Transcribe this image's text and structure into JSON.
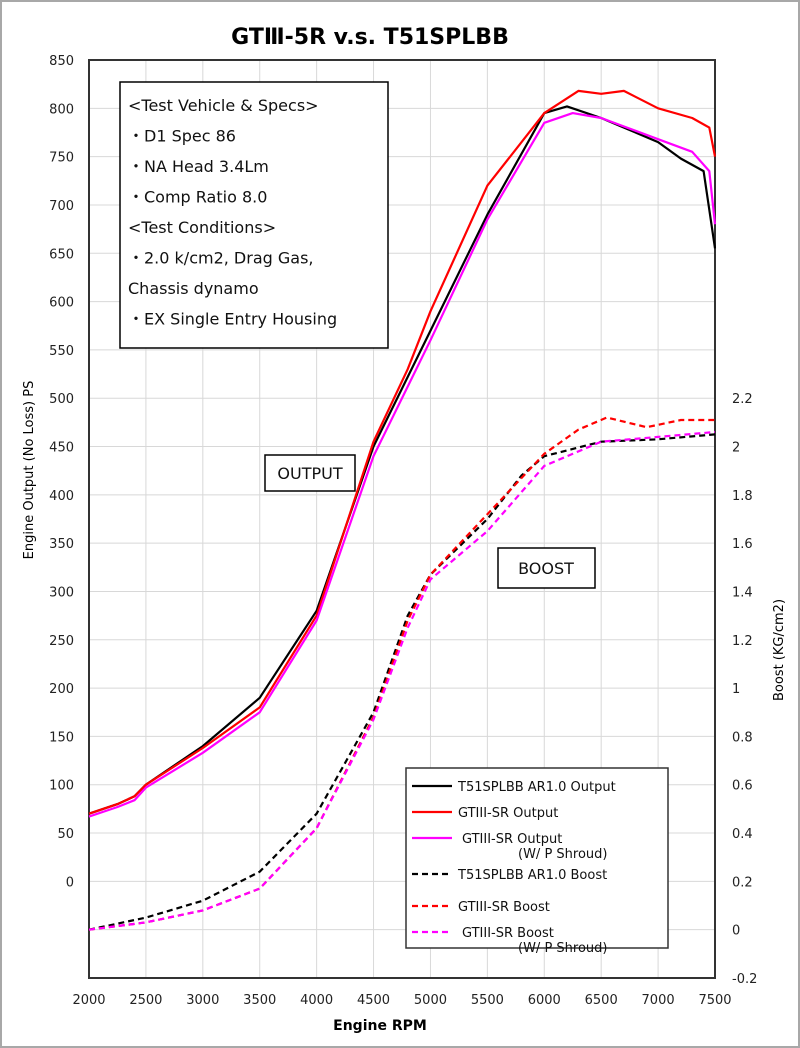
{
  "chart_data": {
    "type": "line",
    "title": "GTⅢ-5R   v.s. T51SPLBB",
    "xlabel": "Engine RPM",
    "ylabel": "Engine Output (No Loss) PS",
    "y2label": "Boost (KG/cm2)",
    "xlim": [
      2000,
      7500
    ],
    "ylim": [
      -100,
      850
    ],
    "y2lim": [
      -0.2,
      3.6
    ],
    "xticks": [
      "2000",
      "2500",
      "3000",
      "3500",
      "4000",
      "4500",
      "5000",
      "5500",
      "6000",
      "6500",
      "7000",
      "7500"
    ],
    "yticks": [
      "0",
      "50",
      "100",
      "150",
      "200",
      "250",
      "300",
      "350",
      "400",
      "450",
      "500",
      "550",
      "600",
      "650",
      "700",
      "750",
      "800",
      "850"
    ],
    "y2ticks": [
      "-0.2",
      "0",
      "0.2",
      "0.4",
      "0.6",
      "0.8",
      "1",
      "1.2",
      "1.4",
      "1.6",
      "1.8",
      "2",
      "2.2"
    ],
    "grid": true,
    "legend_placement": "bottom-right",
    "series": [
      {
        "name": "T51SPLBB AR1.0 Output",
        "axis": "left",
        "color": "#000000",
        "dash": false,
        "x": [
          2000,
          2250,
          2400,
          2500,
          3000,
          3500,
          4000,
          4500,
          5000,
          5500,
          6000,
          6200,
          6500,
          7000,
          7200,
          7400,
          7500
        ],
        "y": [
          70,
          80,
          88,
          100,
          140,
          190,
          280,
          450,
          570,
          690,
          795,
          802,
          790,
          765,
          748,
          735,
          655
        ]
      },
      {
        "name": "GTIII-SR Output",
        "axis": "left",
        "color": "#ff0000",
        "dash": false,
        "x": [
          2000,
          2250,
          2400,
          2500,
          3000,
          3500,
          4000,
          4500,
          4800,
          5000,
          5500,
          6000,
          6300,
          6500,
          6700,
          7000,
          7300,
          7450,
          7500
        ],
        "y": [
          70,
          80,
          88,
          100,
          138,
          180,
          275,
          455,
          530,
          590,
          720,
          795,
          818,
          815,
          818,
          800,
          790,
          780,
          750
        ]
      },
      {
        "name": "GTIII-SR Output",
        "subname": "(W/ P Shroud)",
        "axis": "left",
        "color": "#ff00ff",
        "dash": false,
        "x": [
          2000,
          2250,
          2400,
          2500,
          3000,
          3500,
          4000,
          4500,
          5000,
          5500,
          6000,
          6250,
          6500,
          7000,
          7300,
          7450,
          7500
        ],
        "y": [
          67,
          77,
          84,
          97,
          133,
          175,
          270,
          440,
          560,
          685,
          785,
          795,
          790,
          768,
          755,
          735,
          680
        ]
      },
      {
        "name": "T51SPLBB AR1.0 Boost",
        "axis": "right",
        "color": "#000000",
        "dash": true,
        "x": [
          2000,
          2500,
          3000,
          3500,
          4000,
          4500,
          4800,
          5000,
          5500,
          5800,
          6000,
          6500,
          7000,
          7500
        ],
        "y": [
          0,
          0.05,
          0.12,
          0.24,
          0.48,
          0.9,
          1.3,
          1.47,
          1.7,
          1.88,
          1.96,
          2.02,
          2.03,
          2.05
        ]
      },
      {
        "name": "GTIII-SR Boost",
        "axis": "right",
        "color": "#ff0000",
        "dash": true,
        "x": [
          2000,
          2500,
          3000,
          3500,
          4000,
          4500,
          4800,
          5000,
          5500,
          6000,
          6300,
          6550,
          6900,
          7200,
          7500
        ],
        "y": [
          0,
          0.03,
          0.08,
          0.17,
          0.42,
          0.88,
          1.28,
          1.47,
          1.72,
          1.97,
          2.07,
          2.12,
          2.08,
          2.11,
          2.11
        ]
      },
      {
        "name": "GTIII-SR Boost",
        "subname": "(W/ P Shroud)",
        "axis": "right",
        "color": "#ff00ff",
        "dash": true,
        "x": [
          2000,
          2500,
          3000,
          3500,
          4000,
          4500,
          4800,
          5000,
          5500,
          6000,
          6500,
          7000,
          7500
        ],
        "y": [
          0,
          0.03,
          0.08,
          0.17,
          0.42,
          0.87,
          1.25,
          1.45,
          1.65,
          1.92,
          2.02,
          2.04,
          2.06
        ]
      }
    ],
    "annotations": {
      "specs": [
        "<Test Vehicle & Specs>",
        "・D1 Spec 86",
        "・NA Head 3.4Lm",
        "・Comp Ratio 8.0",
        "<Test Conditions>",
        "・2.0 k/cm2, Drag Gas,",
        "  Chassis dynamo",
        "・EX Single Entry Housing"
      ],
      "output_label": "OUTPUT",
      "boost_label": "BOOST"
    }
  }
}
